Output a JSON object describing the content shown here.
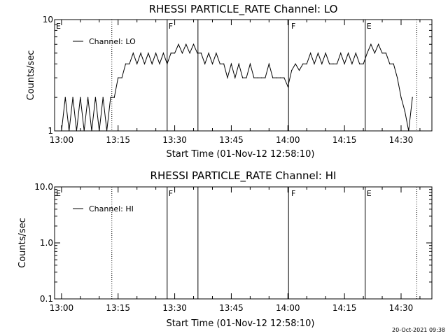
{
  "chart_data": [
    {
      "type": "line",
      "title": "RHESSI PARTICLE_RATE Channel: LO",
      "xlabel": "Start Time (01-Nov-12 12:58:10)",
      "ylabel": "Counts/sec",
      "yscale": "log",
      "xlim": [
        "12:58:10",
        "14:38:10"
      ],
      "ylim": [
        1,
        10
      ],
      "x_ticks": [
        "13:00",
        "13:15",
        "13:30",
        "13:45",
        "14:00",
        "14:15",
        "14:30"
      ],
      "y_ticks": [
        "1",
        "10"
      ],
      "legend": "top-left",
      "series": [
        {
          "name": "Channel: LO",
          "x": [
            "13:00",
            "13:01",
            "13:02",
            "13:03",
            "13:04",
            "13:05",
            "13:06",
            "13:07",
            "13:08",
            "13:09",
            "13:10",
            "13:11",
            "13:12",
            "13:13",
            "13:14",
            "13:15",
            "13:16",
            "13:17",
            "13:18",
            "13:19",
            "13:20",
            "13:21",
            "13:22",
            "13:23",
            "13:24",
            "13:25",
            "13:26",
            "13:27",
            "13:28",
            "13:29",
            "13:30",
            "13:31",
            "13:32",
            "13:33",
            "13:34",
            "13:35",
            "13:36",
            "13:37",
            "13:38",
            "13:39",
            "13:40",
            "13:41",
            "13:42",
            "13:43",
            "13:44",
            "13:45",
            "13:46",
            "13:47",
            "13:48",
            "13:49",
            "13:50",
            "13:51",
            "13:52",
            "13:53",
            "13:54",
            "13:55",
            "13:56",
            "13:57",
            "13:58",
            "13:59",
            "14:00",
            "14:01",
            "14:02",
            "14:03",
            "14:04",
            "14:05",
            "14:06",
            "14:07",
            "14:08",
            "14:09",
            "14:10",
            "14:11",
            "14:12",
            "14:13",
            "14:14",
            "14:15",
            "14:16",
            "14:17",
            "14:18",
            "14:19",
            "14:20",
            "14:21",
            "14:22",
            "14:23",
            "14:24",
            "14:25",
            "14:26",
            "14:27",
            "14:28",
            "14:29",
            "14:30",
            "14:31",
            "14:32",
            "14:33"
          ],
          "values": [
            1,
            2,
            1,
            2,
            1,
            2,
            1,
            2,
            1,
            2,
            1,
            2,
            1,
            2,
            2,
            3,
            3,
            4,
            4,
            5,
            4,
            5,
            4,
            5,
            4,
            5,
            4,
            5,
            4,
            5,
            5,
            6,
            5,
            6,
            5,
            6,
            5,
            5,
            4,
            5,
            4,
            5,
            4,
            4,
            3,
            4,
            3,
            4,
            3,
            3,
            4,
            3,
            3,
            3,
            3,
            4,
            3,
            3,
            3,
            3,
            2.5,
            3.5,
            4,
            3.5,
            4,
            4,
            5,
            4,
            5,
            4,
            5,
            4,
            4,
            4,
            5,
            4,
            5,
            4,
            5,
            4,
            4,
            5,
            6,
            5,
            6,
            5,
            5,
            4,
            4,
            3,
            2,
            1.5,
            1,
            2
          ]
        }
      ],
      "annotations": [
        {
          "text": "E",
          "x": "12:58:10"
        },
        {
          "text": "F",
          "x": "13:28:00"
        },
        {
          "text": "F",
          "x": "14:00:30"
        },
        {
          "text": "E",
          "x": "14:20:30"
        }
      ],
      "vlines_solid": [
        "13:28:00",
        "13:36:10",
        "14:00:10",
        "14:20:30"
      ],
      "vlines_dotted": [
        "13:13:20",
        "14:34:10"
      ]
    },
    {
      "type": "line",
      "title": "RHESSI PARTICLE_RATE Channel: HI",
      "xlabel": "Start Time (01-Nov-12 12:58:10)",
      "ylabel": "Counts/sec",
      "yscale": "log",
      "xlim": [
        "12:58:10",
        "14:38:10"
      ],
      "ylim": [
        0.1,
        10
      ],
      "x_ticks": [
        "13:00",
        "13:15",
        "13:30",
        "13:45",
        "14:00",
        "14:15",
        "14:30"
      ],
      "y_ticks": [
        "0.1",
        "1.0",
        "10.0"
      ],
      "legend": "top-left",
      "series": [
        {
          "name": "Channel: HI",
          "x": [],
          "values": []
        }
      ],
      "annotations": [
        {
          "text": "E",
          "x": "12:58:10"
        },
        {
          "text": "F",
          "x": "13:28:00"
        },
        {
          "text": "F",
          "x": "14:00:30"
        },
        {
          "text": "E",
          "x": "14:20:30"
        }
      ],
      "vlines_solid": [
        "13:28:00",
        "13:36:10",
        "14:00:10",
        "14:20:30"
      ],
      "vlines_dotted": [
        "13:13:20",
        "14:34:10"
      ]
    }
  ],
  "footer": {
    "timestamp": "20-Oct-2021 09:38"
  }
}
